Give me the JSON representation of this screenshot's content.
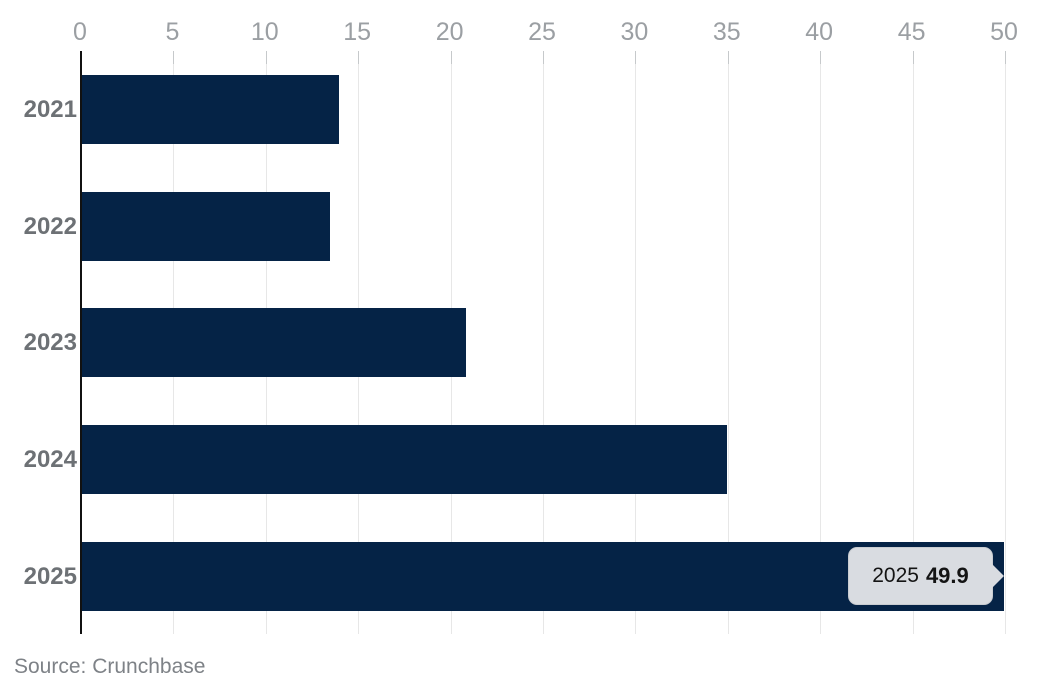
{
  "chart_data": {
    "type": "bar",
    "orientation": "horizontal",
    "title": "",
    "xlabel": "",
    "ylabel": "",
    "categories": [
      "2021",
      "2022",
      "2023",
      "2024",
      "2025"
    ],
    "values": [
      13.9,
      13.4,
      20.8,
      34.9,
      49.9
    ],
    "x_ticks": [
      0,
      5,
      10,
      15,
      20,
      25,
      30,
      35,
      40,
      45,
      50
    ],
    "xlim": [
      0,
      50
    ],
    "grid": true,
    "legend": false,
    "bar_color": "#052346",
    "tooltip": {
      "category": "2025",
      "value": "49.9"
    }
  },
  "source": {
    "label": "Source: Crunchbase"
  },
  "colors": {
    "bar": "#052346",
    "tick_label": "#9b9fa3",
    "category_label": "#6d7175",
    "gridline": "#e7e7e7",
    "axis_line": "#111111",
    "tooltip_bg": "#d9dce1",
    "tooltip_text": "#141414",
    "source_text": "#7e8287"
  }
}
